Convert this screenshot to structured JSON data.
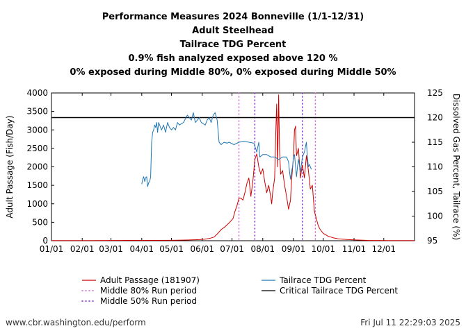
{
  "chart_data": {
    "type": "line",
    "title_lines": [
      "Performance Measures 2024 Bonneville (1/1-12/31)",
      "Adult Steelhead",
      "Tailrace TDG Percent",
      "0.9% fish analyzed exposed above 120 %",
      "0% exposed during Middle 80%, 0% exposed during Middle 50%"
    ],
    "ylabel_left": "Adult Passage (Fish/Day)",
    "ylabel_right": "Dissolved Gas Percent, Tailrace (%)",
    "ylim_left": [
      0,
      4000
    ],
    "yticks_left": [
      "0",
      "500",
      "1000",
      "1500",
      "2000",
      "2500",
      "3000",
      "3500",
      "4000"
    ],
    "ylim_right": [
      95,
      125
    ],
    "yticks_right": [
      "95",
      "100",
      "105",
      "110",
      "115",
      "120",
      "125"
    ],
    "x_tick_labels": [
      "01/01",
      "02/01",
      "03/01",
      "04/01",
      "05/01",
      "06/01",
      "07/01",
      "08/01",
      "09/01",
      "10/01",
      "11/01",
      "12/01"
    ],
    "x_tick_days": [
      1,
      32,
      61,
      92,
      122,
      153,
      183,
      214,
      245,
      275,
      306,
      336
    ],
    "xlim_days": [
      1,
      367
    ],
    "critical_tdg_percent": 120,
    "middle80_days": [
      190,
      267
    ],
    "middle50_days": [
      206,
      254
    ],
    "series": [
      {
        "name": "Adult Passage (181907)",
        "axis": "left",
        "color": "#cc0000",
        "points": [
          [
            1,
            5
          ],
          [
            20,
            5
          ],
          [
            40,
            5
          ],
          [
            60,
            8
          ],
          [
            80,
            10
          ],
          [
            100,
            10
          ],
          [
            120,
            12
          ],
          [
            140,
            20
          ],
          [
            150,
            30
          ],
          [
            155,
            40
          ],
          [
            160,
            60
          ],
          [
            165,
            100
          ],
          [
            168,
            180
          ],
          [
            172,
            300
          ],
          [
            176,
            380
          ],
          [
            180,
            480
          ],
          [
            184,
            600
          ],
          [
            186,
            800
          ],
          [
            188,
            950
          ],
          [
            190,
            1150
          ],
          [
            192,
            1150
          ],
          [
            194,
            1100
          ],
          [
            196,
            1300
          ],
          [
            198,
            1550
          ],
          [
            200,
            1700
          ],
          [
            202,
            1200
          ],
          [
            204,
            1600
          ],
          [
            206,
            2200
          ],
          [
            208,
            2350
          ],
          [
            210,
            2000
          ],
          [
            212,
            1800
          ],
          [
            214,
            1950
          ],
          [
            216,
            1600
          ],
          [
            218,
            1300
          ],
          [
            220,
            1500
          ],
          [
            222,
            1200
          ],
          [
            223,
            1000
          ],
          [
            224,
            1300
          ],
          [
            226,
            1700
          ],
          [
            227,
            2800
          ],
          [
            228,
            3700
          ],
          [
            229,
            2000
          ],
          [
            230,
            3950
          ],
          [
            231,
            2400
          ],
          [
            232,
            1800
          ],
          [
            234,
            1900
          ],
          [
            236,
            1500
          ],
          [
            238,
            1200
          ],
          [
            240,
            850
          ],
          [
            242,
            1100
          ],
          [
            243,
            1600
          ],
          [
            245,
            2300
          ],
          [
            246,
            3000
          ],
          [
            247,
            3100
          ],
          [
            248,
            2300
          ],
          [
            250,
            2500
          ],
          [
            252,
            1700
          ],
          [
            253,
            1900
          ],
          [
            254,
            2050
          ],
          [
            256,
            1700
          ],
          [
            258,
            2300
          ],
          [
            260,
            1900
          ],
          [
            262,
            1400
          ],
          [
            264,
            1500
          ],
          [
            266,
            800
          ],
          [
            268,
            600
          ],
          [
            270,
            400
          ],
          [
            272,
            300
          ],
          [
            275,
            200
          ],
          [
            280,
            120
          ],
          [
            285,
            80
          ],
          [
            290,
            50
          ],
          [
            300,
            30
          ],
          [
            320,
            10
          ],
          [
            340,
            5
          ],
          [
            367,
            5
          ]
        ]
      },
      {
        "name": "Tailrace TDG Percent",
        "axis": "right",
        "color": "#1f77b4",
        "points": [
          [
            92,
            106.5
          ],
          [
            93,
            107.5
          ],
          [
            94,
            108
          ],
          [
            95,
            107
          ],
          [
            96,
            107.8
          ],
          [
            97,
            108
          ],
          [
            98,
            106
          ],
          [
            99,
            106.8
          ],
          [
            100,
            107
          ],
          [
            101,
            108
          ],
          [
            102,
            115
          ],
          [
            103,
            117
          ],
          [
            104,
            117.5
          ],
          [
            105,
            118.5
          ],
          [
            106,
            118
          ],
          [
            107,
            119
          ],
          [
            108,
            117
          ],
          [
            109,
            119
          ],
          [
            110,
            118.5
          ],
          [
            112,
            117.5
          ],
          [
            114,
            118.5
          ],
          [
            116,
            117
          ],
          [
            118,
            119
          ],
          [
            120,
            118
          ],
          [
            122,
            117.5
          ],
          [
            124,
            118
          ],
          [
            126,
            117.5
          ],
          [
            128,
            119
          ],
          [
            130,
            118.5
          ],
          [
            134,
            119
          ],
          [
            138,
            120.5
          ],
          [
            140,
            120
          ],
          [
            142,
            119.5
          ],
          [
            144,
            121
          ],
          [
            146,
            119
          ],
          [
            148,
            119.5
          ],
          [
            150,
            120
          ],
          [
            152,
            119
          ],
          [
            156,
            118.5
          ],
          [
            158,
            119.5
          ],
          [
            160,
            120
          ],
          [
            162,
            119
          ],
          [
            164,
            120.5
          ],
          [
            166,
            121
          ],
          [
            168,
            119.5
          ],
          [
            170,
            115
          ],
          [
            172,
            114.5
          ],
          [
            175,
            115
          ],
          [
            178,
            114.8
          ],
          [
            180,
            115
          ],
          [
            185,
            114.5
          ],
          [
            190,
            115
          ],
          [
            195,
            115.2
          ],
          [
            200,
            115
          ],
          [
            205,
            114.8
          ],
          [
            208,
            113
          ],
          [
            210,
            115
          ],
          [
            211,
            112
          ],
          [
            214,
            112.5
          ],
          [
            218,
            112.5
          ],
          [
            222,
            112
          ],
          [
            226,
            112
          ],
          [
            230,
            111.5
          ],
          [
            234,
            112
          ],
          [
            238,
            112
          ],
          [
            240,
            111
          ],
          [
            241,
            109
          ],
          [
            242,
            107.5
          ],
          [
            243,
            109
          ],
          [
            244,
            110
          ],
          [
            245,
            112
          ],
          [
            246,
            112.5
          ],
          [
            248,
            108
          ],
          [
            249,
            110
          ],
          [
            250,
            111.5
          ],
          [
            252,
            109
          ],
          [
            254,
            112
          ],
          [
            256,
            113
          ],
          [
            258,
            115
          ],
          [
            259,
            112
          ],
          [
            260,
            110
          ],
          [
            261,
            110.5
          ],
          [
            262,
            110
          ],
          [
            263,
            109.5
          ]
        ]
      }
    ],
    "reference_lines": [
      {
        "name": "Middle 80% Run period",
        "style": "dotted",
        "color": "#cc66cc"
      },
      {
        "name": "Middle 50% Run period",
        "style": "dotted",
        "color": "#7d26cd"
      },
      {
        "name": "Critical Tailrace TDG Percent",
        "style": "solid",
        "color": "#000000"
      }
    ]
  },
  "footer": {
    "left": "www.cbr.washington.edu/perform",
    "right": "Fri Jul 11 22:29:03 2025"
  }
}
